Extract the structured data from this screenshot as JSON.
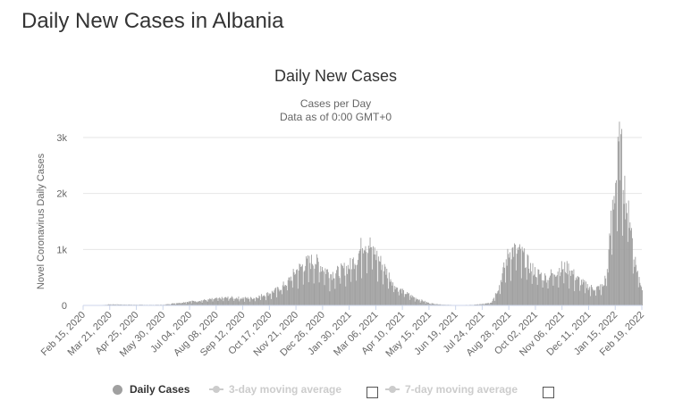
{
  "page_title": "Daily New Cases in Albania",
  "chart_data": {
    "type": "bar",
    "title": "Daily New Cases",
    "subtitle": "Cases per Day",
    "subtitle2": "Data as of 0:00 GMT+0",
    "ylabel": "Novel Coronavirus Daily Cases",
    "xlabel": "",
    "ylim": [
      0,
      3000
    ],
    "yticks": [
      {
        "value": 0,
        "label": "0"
      },
      {
        "value": 1000,
        "label": "1k"
      },
      {
        "value": 2000,
        "label": "2k"
      },
      {
        "value": 3000,
        "label": "3k"
      }
    ],
    "x_start": "2020-02-15",
    "x_end": "2022-02-19",
    "xtick_labels": [
      "Feb 15, 2020",
      "Mar 21, 2020",
      "Apr 25, 2020",
      "May 30, 2020",
      "Jul 04, 2020",
      "Aug 08, 2020",
      "Sep 12, 2020",
      "Oct 17, 2020",
      "Nov 21, 2020",
      "Dec 26, 2020",
      "Jan 30, 2021",
      "Mar 06, 2021",
      "Apr 10, 2021",
      "May 15, 2021",
      "Jun 19, 2021",
      "Jul 24, 2021",
      "Aug 28, 2021",
      "Oct 02, 2021",
      "Nov 06, 2021",
      "Dec 11, 2021",
      "Jan 15, 2022",
      "Feb 19, 2022"
    ],
    "series": [
      {
        "name": "Daily Cases",
        "color": "#a0a0a0",
        "points": [
          [
            "2020-02-15",
            0
          ],
          [
            "2020-03-10",
            5
          ],
          [
            "2020-03-21",
            20
          ],
          [
            "2020-04-10",
            15
          ],
          [
            "2020-04-25",
            12
          ],
          [
            "2020-05-15",
            10
          ],
          [
            "2020-05-30",
            12
          ],
          [
            "2020-06-15",
            40
          ],
          [
            "2020-07-04",
            70
          ],
          [
            "2020-07-20",
            90
          ],
          [
            "2020-08-08",
            120
          ],
          [
            "2020-08-25",
            140
          ],
          [
            "2020-09-12",
            130
          ],
          [
            "2020-09-25",
            130
          ],
          [
            "2020-10-17",
            220
          ],
          [
            "2020-10-30",
            300
          ],
          [
            "2020-11-10",
            430
          ],
          [
            "2020-11-21",
            620
          ],
          [
            "2020-12-05",
            760
          ],
          [
            "2020-12-15",
            800
          ],
          [
            "2020-12-26",
            680
          ],
          [
            "2021-01-05",
            560
          ],
          [
            "2021-01-15",
            600
          ],
          [
            "2021-01-30",
            700
          ],
          [
            "2021-02-10",
            900
          ],
          [
            "2021-02-18",
            1150
          ],
          [
            "2021-02-25",
            1100
          ],
          [
            "2021-03-06",
            900
          ],
          [
            "2021-03-20",
            600
          ],
          [
            "2021-04-01",
            330
          ],
          [
            "2021-04-10",
            250
          ],
          [
            "2021-04-25",
            140
          ],
          [
            "2021-05-05",
            90
          ],
          [
            "2021-05-15",
            40
          ],
          [
            "2021-06-01",
            15
          ],
          [
            "2021-06-19",
            5
          ],
          [
            "2021-07-10",
            10
          ],
          [
            "2021-07-24",
            25
          ],
          [
            "2021-08-05",
            60
          ],
          [
            "2021-08-15",
            350
          ],
          [
            "2021-08-22",
            700
          ],
          [
            "2021-08-28",
            950
          ],
          [
            "2021-09-05",
            1000
          ],
          [
            "2021-09-15",
            900
          ],
          [
            "2021-09-25",
            680
          ],
          [
            "2021-10-02",
            600
          ],
          [
            "2021-10-15",
            500
          ],
          [
            "2021-10-25",
            580
          ],
          [
            "2021-11-06",
            680
          ],
          [
            "2021-11-15",
            660
          ],
          [
            "2021-11-25",
            480
          ],
          [
            "2021-12-05",
            380
          ],
          [
            "2021-12-11",
            330
          ],
          [
            "2021-12-20",
            300
          ],
          [
            "2021-12-30",
            350
          ],
          [
            "2022-01-05",
            700
          ],
          [
            "2022-01-10",
            1700
          ],
          [
            "2022-01-15",
            2200
          ],
          [
            "2022-01-20",
            2800
          ],
          [
            "2022-01-24",
            2600
          ],
          [
            "2022-01-28",
            1900
          ],
          [
            "2022-02-03",
            1600
          ],
          [
            "2022-02-08",
            900
          ],
          [
            "2022-02-14",
            550
          ],
          [
            "2022-02-19",
            300
          ]
        ]
      }
    ],
    "legend_position": "bottom",
    "grid": true
  },
  "legend": {
    "items": [
      {
        "label": "Daily Cases"
      },
      {
        "label": "3-day moving average"
      },
      {
        "label": "7-day moving average"
      }
    ]
  }
}
